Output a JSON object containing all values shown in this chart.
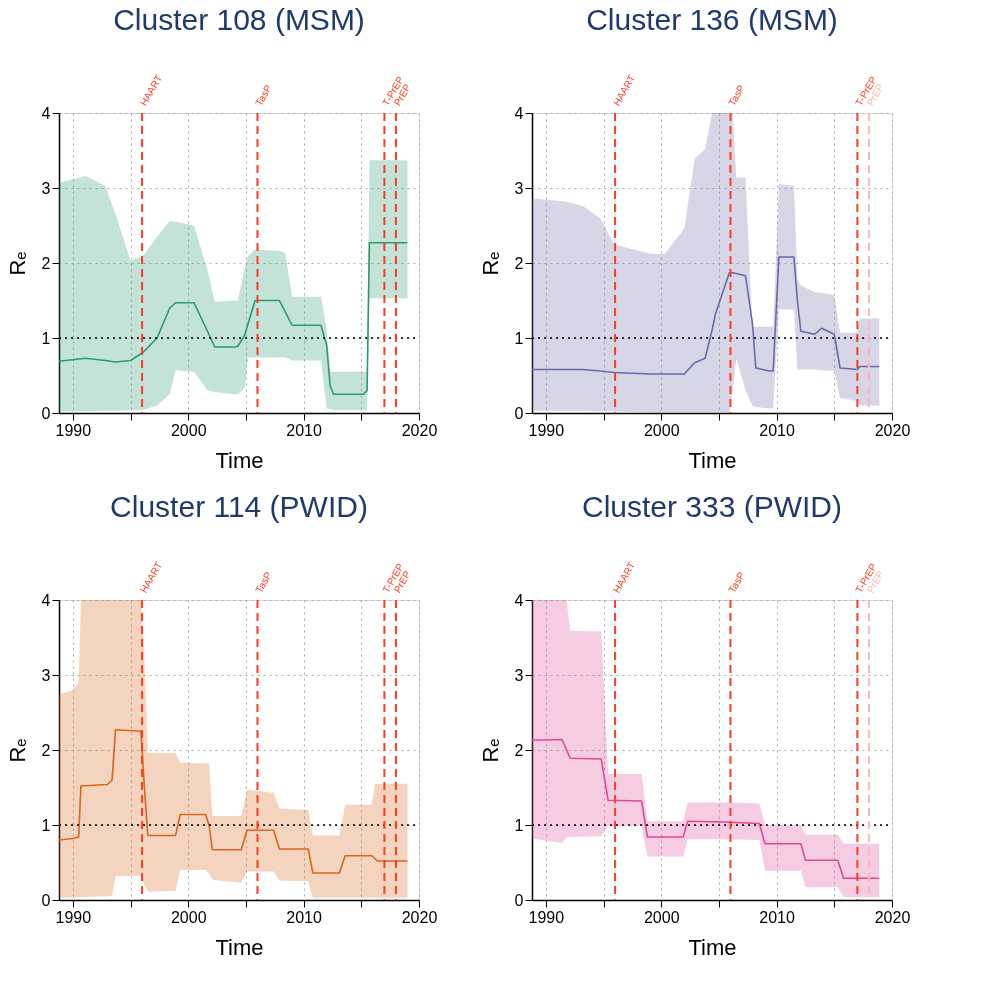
{
  "chart_data": [
    {
      "type": "line",
      "title": "Cluster 108 (MSM)",
      "xlabel": "Time",
      "ylabel": "Rₑ",
      "xlim": [
        1988.8,
        2020
      ],
      "ylim": [
        0,
        4
      ],
      "xticks": [
        1990,
        {
          "value": 1995,
          "label": null
        },
        2000,
        {
          "value": 2005,
          "label": null
        },
        2010,
        {
          "value": 2015,
          "label": null
        },
        2020
      ],
      "yticks": [
        0,
        1,
        2,
        3,
        4
      ],
      "grid": true,
      "x": [
        1988.8,
        1991.1,
        1992.8,
        1993.7,
        1995.0,
        1996.1,
        1997.3,
        1998.4,
        1998.9,
        2000.5,
        2001.7,
        2002.3,
        2004.0,
        2004.3,
        2004.9,
        2005.2,
        2005.8,
        2007.9,
        2008.4,
        2009.0,
        2011.5,
        2012.0,
        2012.3,
        2012.6,
        2015.2,
        2015.5,
        2015.7,
        2019.0
      ],
      "series": [
        {
          "color": "#2a9a72",
          "values": [
            0.69,
            0.73,
            0.7,
            0.68,
            0.7,
            0.81,
            1.0,
            1.4,
            1.47,
            1.47,
            1.08,
            0.88,
            0.88,
            0.89,
            1.04,
            1.2,
            1.5,
            1.5,
            1.35,
            1.17,
            1.17,
            0.9,
            0.36,
            0.25,
            0.25,
            0.3,
            2.27,
            2.27
          ],
          "upper": [
            3.07,
            3.16,
            3.03,
            2.65,
            2.03,
            2.1,
            2.35,
            2.56,
            2.55,
            2.5,
            1.89,
            1.48,
            1.5,
            1.5,
            1.93,
            2.1,
            2.18,
            2.16,
            2.14,
            1.55,
            1.55,
            1.12,
            0.55,
            0.55,
            0.55,
            0.55,
            3.37,
            3.37
          ],
          "lower": [
            0.02,
            0.02,
            0.03,
            0.03,
            0.04,
            0.04,
            0.1,
            0.25,
            0.57,
            0.55,
            0.3,
            0.28,
            0.25,
            0.25,
            0.34,
            0.74,
            0.74,
            0.74,
            0.74,
            0.7,
            0.7,
            0.06,
            0.05,
            0.04,
            0.04,
            0.04,
            1.53,
            1.53
          ]
        }
      ],
      "ref_lines": [
        {
          "axis": "y",
          "value": 1,
          "color": "#000000",
          "line_style": "dotted"
        },
        {
          "axis": "x",
          "value": 1996,
          "label": "HAART",
          "color": "#ff3b1f",
          "line_style": "dashed"
        },
        {
          "axis": "x",
          "value": 2006,
          "label": "TasP",
          "color": "#ff3b1f",
          "line_style": "dashed"
        },
        {
          "axis": "x",
          "value": 2017,
          "label": "T-PrEP",
          "color": "#ff3b1f",
          "line_style": "dashed"
        },
        {
          "axis": "x",
          "value": 2018,
          "label": "PrEP",
          "color": "#ff3b1f",
          "line_style": "dashed"
        }
      ]
    },
    {
      "type": "line",
      "title": "Cluster 136 (MSM)",
      "xlabel": "Time",
      "ylabel": "Rₑ",
      "xlim": [
        1988.8,
        2020
      ],
      "ylim": [
        0,
        4
      ],
      "xticks": [
        1990,
        {
          "value": 1995,
          "label": null
        },
        2000,
        {
          "value": 2005,
          "label": null
        },
        2010,
        {
          "value": 2015,
          "label": null
        },
        2020
      ],
      "yticks": [
        0,
        1,
        2,
        3,
        4
      ],
      "grid": true,
      "x": [
        1988.8,
        1991.7,
        1993.2,
        1994.7,
        1995.9,
        1999.1,
        2000.3,
        2002.0,
        2002.9,
        2003.8,
        2004.4,
        2004.7,
        2005.9,
        2006.2,
        2006.5,
        2007.3,
        2007.9,
        2008.2,
        2009.4,
        2009.7,
        2010.2,
        2011.5,
        2011.8,
        2012.1,
        2013.3,
        2013.9,
        2015.0,
        2015.5,
        2017.0,
        2017.2,
        2018.9
      ],
      "series": [
        {
          "color": "#6a6aaa",
          "values": [
            0.58,
            0.58,
            0.58,
            0.56,
            0.54,
            0.52,
            0.52,
            0.52,
            0.67,
            0.73,
            1.1,
            1.32,
            1.87,
            1.87,
            1.86,
            1.83,
            1.2,
            0.6,
            0.56,
            0.56,
            2.08,
            2.08,
            1.5,
            1.09,
            1.05,
            1.13,
            1.05,
            0.6,
            0.58,
            0.62,
            0.62
          ],
          "upper": [
            2.86,
            2.82,
            2.76,
            2.6,
            2.25,
            2.12,
            2.12,
            2.46,
            3.39,
            3.52,
            4,
            4,
            4,
            4,
            3.14,
            3.14,
            1.15,
            1.15,
            1.15,
            1.15,
            3.05,
            3.03,
            1.78,
            1.7,
            1.61,
            1.6,
            1.57,
            1.07,
            1.07,
            1.26,
            1.26
          ],
          "lower": [
            0.03,
            0.03,
            0.03,
            0.02,
            0.02,
            0.01,
            0.01,
            0.01,
            0.01,
            0.01,
            0.01,
            0.01,
            0.01,
            0.3,
            0.73,
            0.31,
            0.1,
            0.08,
            0.06,
            0.06,
            1.38,
            1.38,
            0.58,
            0.58,
            0.58,
            0.57,
            0.56,
            0.2,
            0.16,
            0.1,
            0.1
          ]
        }
      ],
      "ref_lines": [
        {
          "axis": "y",
          "value": 1,
          "color": "#000000",
          "line_style": "dotted"
        },
        {
          "axis": "x",
          "value": 1996,
          "label": "HAART",
          "color": "#ff3b1f",
          "line_style": "dashed"
        },
        {
          "axis": "x",
          "value": 2006,
          "label": "TasP",
          "color": "#ff3b1f",
          "line_style": "dashed"
        },
        {
          "axis": "x",
          "value": 2017,
          "label": "T-PrEP",
          "color": "#ff3b1f",
          "line_style": "dashed"
        },
        {
          "axis": "x",
          "value": 2018,
          "label": "PrEP",
          "color": "#f9b9b0",
          "line_style": "dashed"
        }
      ]
    },
    {
      "type": "line",
      "title": "Cluster 114 (PWID)",
      "xlabel": "Time",
      "ylabel": "Rₑ",
      "xlim": [
        1988.8,
        2020
      ],
      "ylim": [
        0,
        4
      ],
      "xticks": [
        1990,
        {
          "value": 1995,
          "label": null
        },
        2000,
        {
          "value": 2005,
          "label": null
        },
        2010,
        {
          "value": 2015,
          "label": null
        },
        2020
      ],
      "yticks": [
        0,
        1,
        2,
        3,
        4
      ],
      "grid": true,
      "x": [
        1988.8,
        1990.0,
        1990.5,
        1990.7,
        1993.0,
        1993.4,
        1993.7,
        1995.9,
        1996.2,
        1996.5,
        1998.9,
        1999.3,
        2001.5,
        2001.8,
        2002.1,
        2004.6,
        2005.1,
        2007.4,
        2007.9,
        2010.4,
        2010.8,
        2013.1,
        2013.6,
        2015.9,
        2016.2,
        2016.4,
        2019.0
      ],
      "series": [
        {
          "color": "#d9661a",
          "values": [
            0.8,
            0.82,
            0.84,
            1.52,
            1.54,
            1.6,
            2.27,
            2.25,
            1.5,
            0.86,
            0.86,
            1.14,
            1.14,
            1.0,
            0.67,
            0.67,
            0.93,
            0.93,
            0.68,
            0.68,
            0.36,
            0.36,
            0.59,
            0.59,
            0.55,
            0.52,
            0.52
          ],
          "upper": [
            2.74,
            2.8,
            2.9,
            4,
            4,
            4,
            4,
            4,
            3.26,
            1.96,
            1.96,
            1.83,
            1.82,
            1.82,
            1.12,
            1.12,
            1.47,
            1.43,
            1.22,
            1.2,
            0.86,
            0.86,
            1.27,
            1.27,
            1.55,
            1.55,
            1.55
          ],
          "lower": [
            0.03,
            0.03,
            0.04,
            0.04,
            0.05,
            0.06,
            0.32,
            0.32,
            0.2,
            0.11,
            0.12,
            0.4,
            0.4,
            0.35,
            0.27,
            0.23,
            0.38,
            0.38,
            0.26,
            0.25,
            0.03,
            0.03,
            0.03,
            0.03,
            0.03,
            0.03,
            0.03
          ]
        }
      ],
      "ref_lines": [
        {
          "axis": "y",
          "value": 1,
          "color": "#000000",
          "line_style": "dotted"
        },
        {
          "axis": "x",
          "value": 1996,
          "label": "HAART",
          "color": "#ff3b1f",
          "line_style": "dashed"
        },
        {
          "axis": "x",
          "value": 2006,
          "label": "TasP",
          "color": "#ff3b1f",
          "line_style": "dashed"
        },
        {
          "axis": "x",
          "value": 2017,
          "label": "T-PrEP",
          "color": "#ff3b1f",
          "line_style": "dashed"
        },
        {
          "axis": "x",
          "value": 2018,
          "label": "PrEP",
          "color": "#ff3b1f",
          "line_style": "dashed"
        }
      ]
    },
    {
      "type": "line",
      "title": "Cluster 333 (PWID)",
      "xlabel": "Time",
      "ylabel": "Rₑ",
      "xlim": [
        1988.8,
        2020
      ],
      "ylim": [
        0,
        4
      ],
      "xticks": [
        1990,
        {
          "value": 1995,
          "label": null
        },
        2000,
        {
          "value": 2005,
          "label": null
        },
        2010,
        {
          "value": 2015,
          "label": null
        },
        2020
      ],
      "yticks": [
        0,
        1,
        2,
        3,
        4
      ],
      "grid": true,
      "x": [
        1988.8,
        1991.4,
        1991.8,
        1992.1,
        1994.8,
        1995.4,
        1998.3,
        1998.8,
        2001.9,
        2002.3,
        2005.4,
        2008.5,
        2009.0,
        2012.1,
        2012.5,
        2015.3,
        2015.8,
        2018.9
      ],
      "series": [
        {
          "color": "#e0489a",
          "values": [
            2.13,
            2.14,
            2.0,
            1.89,
            1.88,
            1.33,
            1.32,
            0.84,
            0.84,
            1.05,
            1.04,
            1.02,
            0.75,
            0.75,
            0.53,
            0.53,
            0.29,
            0.29
          ],
          "upper": [
            4,
            4,
            4,
            3.59,
            3.58,
            1.68,
            1.68,
            1.05,
            1.05,
            1.3,
            1.3,
            1.29,
            1.0,
            1.0,
            0.87,
            0.87,
            0.75,
            0.75
          ],
          "lower": [
            0.82,
            0.76,
            0.84,
            0.84,
            0.85,
            0.99,
            0.99,
            0.58,
            0.58,
            0.81,
            0.81,
            0.8,
            0.39,
            0.39,
            0.17,
            0.17,
            0.04,
            0.04
          ]
        }
      ],
      "ref_lines": [
        {
          "axis": "y",
          "value": 1,
          "color": "#000000",
          "line_style": "dotted"
        },
        {
          "axis": "x",
          "value": 1996,
          "label": "HAART",
          "color": "#ff3b1f",
          "line_style": "dashed"
        },
        {
          "axis": "x",
          "value": 2006,
          "label": "TasP",
          "color": "#ff3b1f",
          "line_style": "dashed"
        },
        {
          "axis": "x",
          "value": 2017,
          "label": "T-PrEP",
          "color": "#ff3b1f",
          "line_style": "dashed"
        },
        {
          "axis": "x",
          "value": 2018,
          "label": "PrEP",
          "color": "#f9b9b0",
          "line_style": "dashed"
        }
      ]
    }
  ]
}
